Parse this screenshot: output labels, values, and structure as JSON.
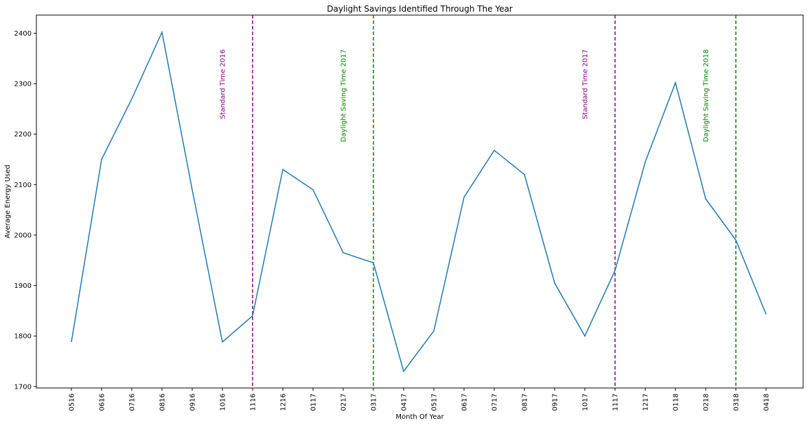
{
  "chart_data": {
    "type": "line",
    "title": "Daylight Savings Identified Through The Year",
    "xlabel": "Month Of Year",
    "ylabel": "Average Energy Used",
    "categories": [
      "0516",
      "0616",
      "0716",
      "0816",
      "0916",
      "1016",
      "1116",
      "1216",
      "0117",
      "0217",
      "0317",
      "0417",
      "0517",
      "0617",
      "0717",
      "0817",
      "0917",
      "1017",
      "1117",
      "1217",
      "0118",
      "0218",
      "0318",
      "0418"
    ],
    "series": [
      {
        "color": "#1f77b4",
        "values": [
          1788,
          2150,
          2270,
          2402,
          2090,
          1788,
          1840,
          2130,
          2090,
          1965,
          1945,
          1730,
          1810,
          2075,
          2168,
          2120,
          1905,
          1800,
          1930,
          2145,
          2302,
          2072,
          1990,
          1843
        ]
      }
    ],
    "ylim": [
      1697,
      2436
    ],
    "yticks": [
      1700,
      1800,
      1900,
      2000,
      2100,
      2200,
      2300,
      2400
    ],
    "grid": false,
    "vlines": [
      {
        "at": "1116",
        "label": "Standard Time 2016",
        "color": "#800080"
      },
      {
        "at": "0317",
        "label": "Daylight Saving Time 2017",
        "color": "#008000"
      },
      {
        "at": "1117",
        "label": "Standard Time 2017",
        "color": "#800080"
      },
      {
        "at": "0318",
        "label": "Daylight Saving Time 2018",
        "color": "#008000"
      }
    ]
  }
}
